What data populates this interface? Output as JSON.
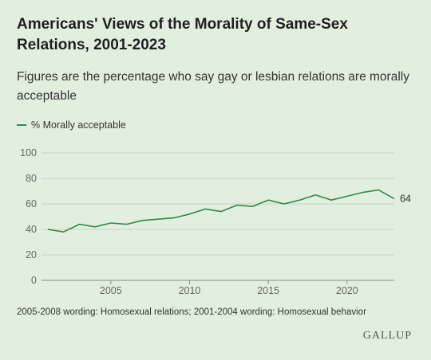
{
  "header": {
    "title": "Americans' Views of the Morality of Same-Sex Relations, 2001-2023",
    "subtitle": "Figures are the percentage who say gay or lesbian relations are morally acceptable"
  },
  "footer": {
    "note": "2005-2008 wording: Homosexual relations; 2001-2004 wording: Homosexual behavior",
    "brand": "GALLUP"
  },
  "chart_data": {
    "type": "line",
    "title": "Americans' Views of the Morality of Same-Sex Relations, 2001-2023",
    "subtitle": "Figures are the percentage who say gay or lesbian relations are morally acceptable",
    "xlabel": "",
    "ylabel": "",
    "x": [
      2001,
      2002,
      2003,
      2004,
      2005,
      2006,
      2007,
      2008,
      2009,
      2010,
      2011,
      2012,
      2013,
      2014,
      2015,
      2016,
      2017,
      2018,
      2019,
      2020,
      2021,
      2022,
      2023
    ],
    "series": [
      {
        "name": "% Morally acceptable",
        "color": "#2f8a4c",
        "values": [
          40,
          38,
          44,
          42,
          45,
          44,
          47,
          48,
          49,
          52,
          56,
          54,
          59,
          58,
          63,
          60,
          63,
          67,
          63,
          66,
          69,
          71,
          64
        ]
      }
    ],
    "end_label": "64",
    "xticks": [
      "2005",
      "2010",
      "2015",
      "2020"
    ],
    "yticks": [
      "0",
      "20",
      "40",
      "60",
      "80",
      "100"
    ],
    "ylim": [
      0,
      100
    ],
    "grid": "horizontal",
    "legend": "top-left"
  }
}
